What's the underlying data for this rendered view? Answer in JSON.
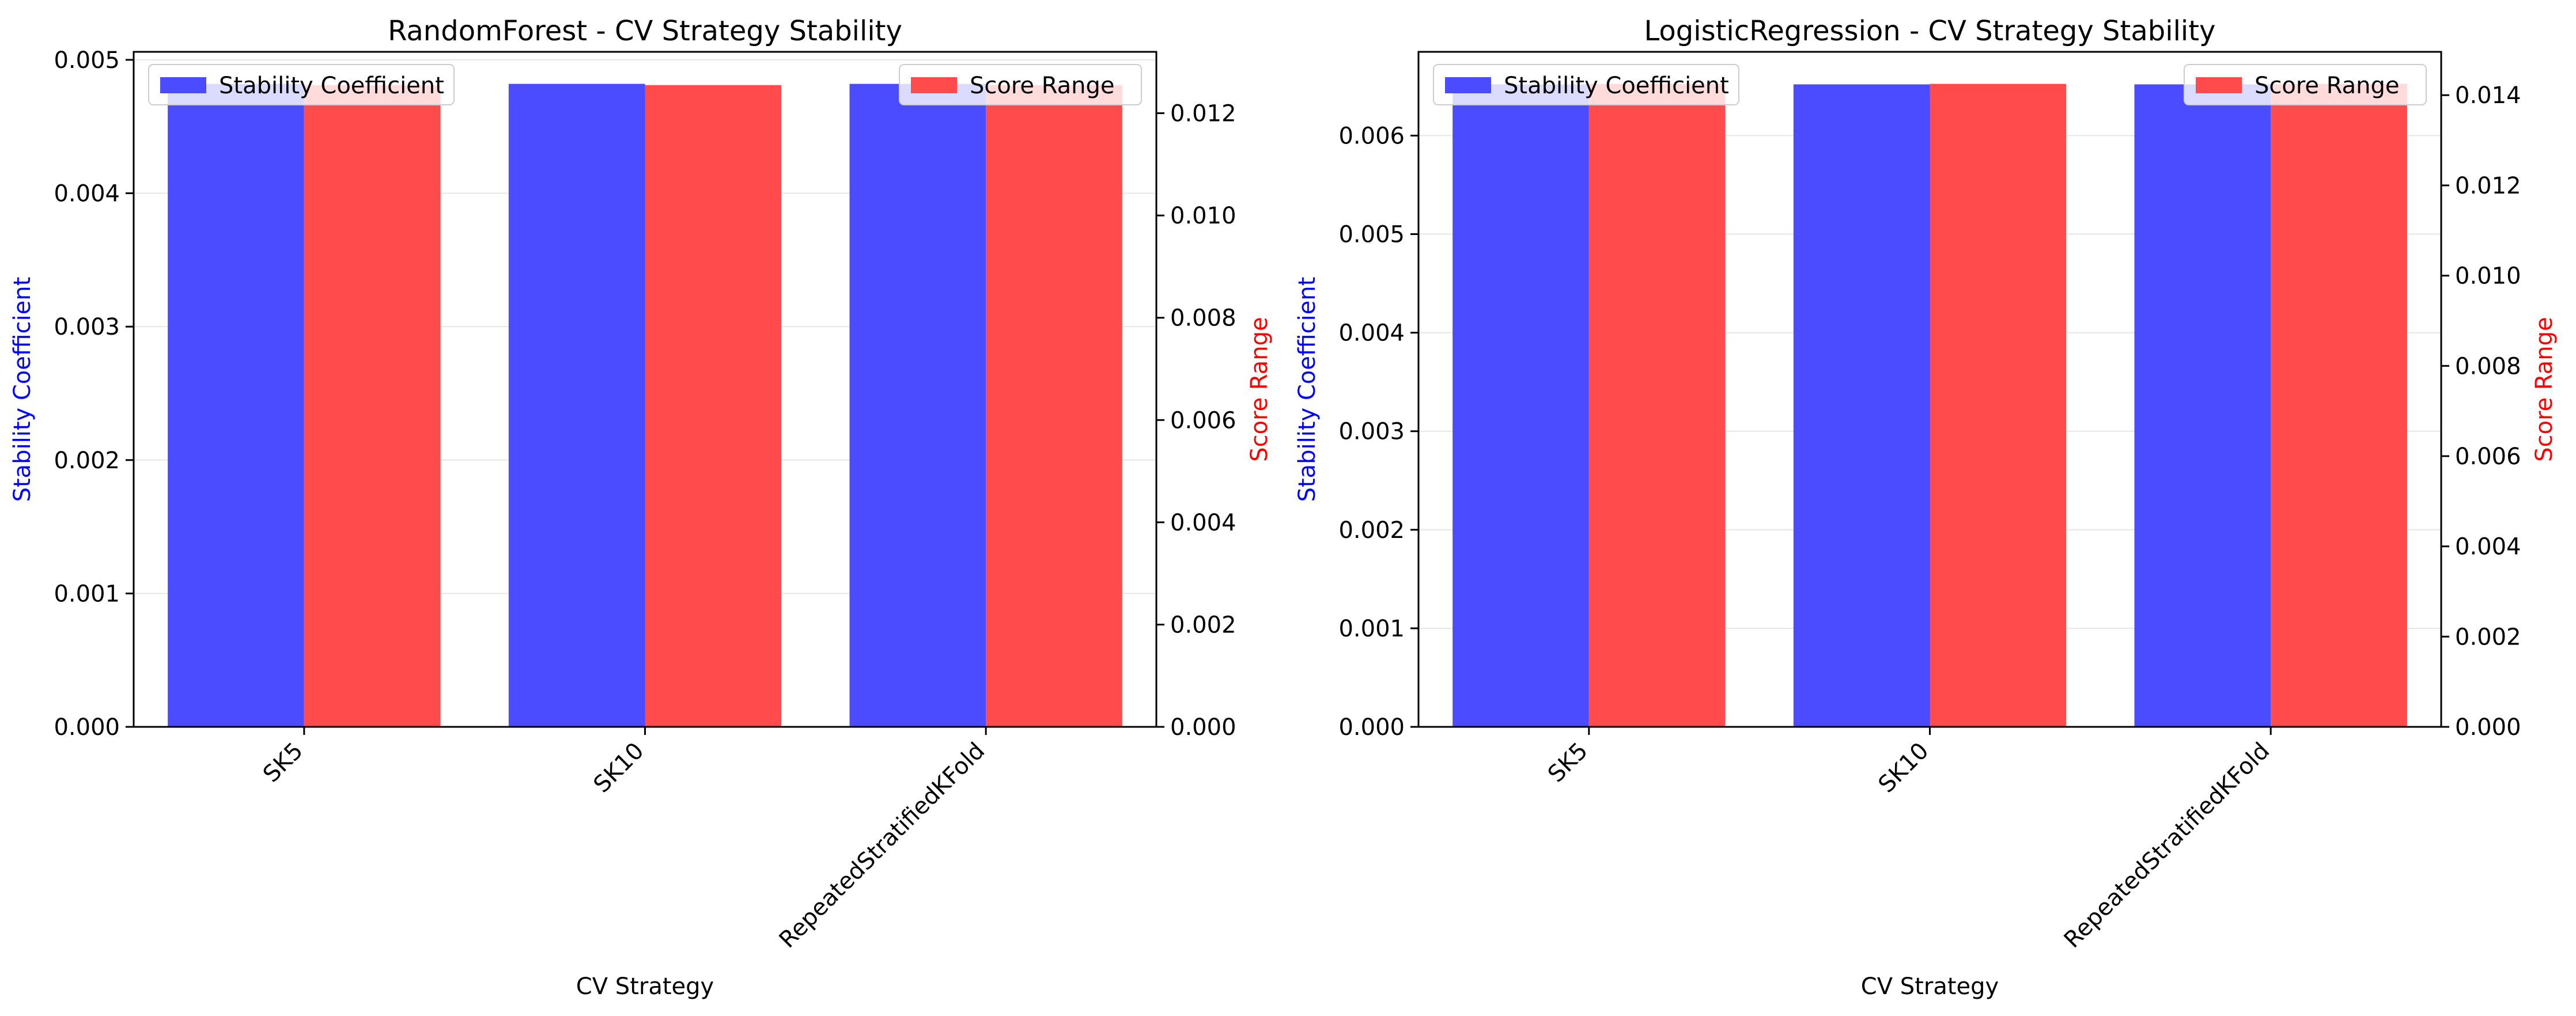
{
  "chart_data": [
    {
      "type": "bar",
      "title": "RandomForest - CV Strategy Stability",
      "xlabel": "CV Strategy",
      "ylabel": "Stability Coefficient",
      "ylabel_right": "Score Range",
      "categories": [
        "SK5",
        "SK10",
        "RepeatedStratifiedKFold"
      ],
      "series": [
        {
          "name": "Stability Coefficient",
          "axis": "left",
          "color": "#4b4bff",
          "values": [
            0.00482,
            0.00482,
            0.00482
          ]
        },
        {
          "name": "Score Range",
          "axis": "right",
          "color": "#ff4b4b",
          "values": [
            0.01255,
            0.01255,
            0.01255
          ]
        }
      ],
      "ylim": [
        0,
        0.00506
      ],
      "ylim_right": [
        0,
        0.0132
      ],
      "yticks": [
        "0.000",
        "0.001",
        "0.002",
        "0.003",
        "0.004",
        "0.005"
      ],
      "yticks_right": [
        "0.000",
        "0.002",
        "0.004",
        "0.006",
        "0.008",
        "0.010",
        "0.012"
      ],
      "grid": true,
      "legend_left": "upper-left",
      "legend_right": "upper-right"
    },
    {
      "type": "bar",
      "title": "LogisticRegression - CV Strategy Stability",
      "xlabel": "CV Strategy",
      "ylabel": "Stability Coefficient",
      "ylabel_right": "Score Range",
      "categories": [
        "SK5",
        "SK10",
        "RepeatedStratifiedKFold"
      ],
      "series": [
        {
          "name": "Stability Coefficient",
          "axis": "left",
          "color": "#4b4bff",
          "values": [
            0.00652,
            0.00652,
            0.00652
          ]
        },
        {
          "name": "Score Range",
          "axis": "right",
          "color": "#ff4b4b",
          "values": [
            0.01425,
            0.01425,
            0.01425
          ]
        }
      ],
      "ylim": [
        0,
        0.00685
      ],
      "ylim_right": [
        0,
        0.01496
      ],
      "yticks": [
        "0.000",
        "0.001",
        "0.002",
        "0.003",
        "0.004",
        "0.005",
        "0.006"
      ],
      "yticks_right": [
        "0.000",
        "0.002",
        "0.004",
        "0.006",
        "0.008",
        "0.010",
        "0.012",
        "0.014"
      ],
      "grid": true,
      "legend_left": "upper-left",
      "legend_right": "upper-right"
    }
  ]
}
